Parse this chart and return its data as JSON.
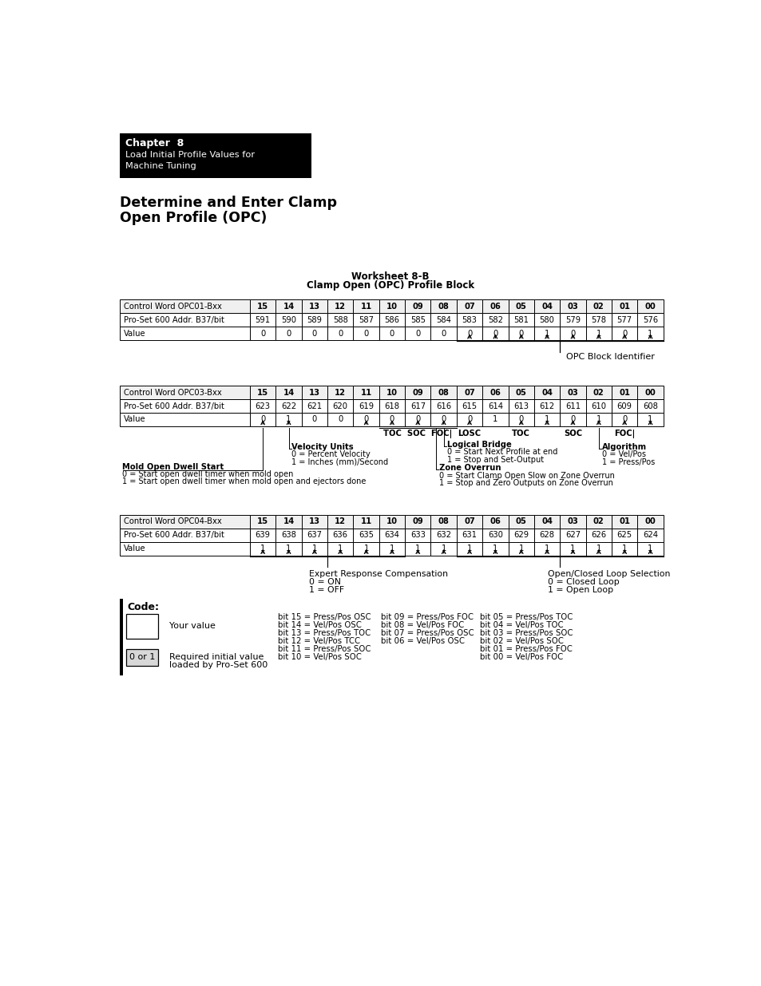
{
  "chapter_box": {
    "text_line1": "Chapter  8",
    "text_line2": "Load Initial Profile Values for",
    "text_line3": "Machine Tuning"
  },
  "title_line1": "Determine and Enter Clamp",
  "title_line2": "Open Profile (OPC)",
  "worksheet_title": "Worksheet 8-B",
  "worksheet_subtitle": "Clamp Open (OPC) Profile Block",
  "table1": {
    "label": "Control Word OPC01-Bxx",
    "bits": [
      "15",
      "14",
      "13",
      "12",
      "11",
      "10",
      "09",
      "08",
      "07",
      "06",
      "05",
      "04",
      "03",
      "02",
      "01",
      "00"
    ],
    "addr_label": "Pro-Set 600 Addr. B37/bit",
    "addrs": [
      "591",
      "590",
      "589",
      "588",
      "587",
      "586",
      "585",
      "584",
      "583",
      "582",
      "581",
      "580",
      "579",
      "578",
      "577",
      "576"
    ],
    "value_label": "Value",
    "values": [
      "0",
      "0",
      "0",
      "0",
      "0",
      "0",
      "0",
      "0",
      "0",
      "0",
      "0",
      "1",
      "0",
      "1",
      "0",
      "1"
    ]
  },
  "opc_block_identifier": "OPC Block Identifier",
  "table2": {
    "label": "Control Word OPC03-Bxx",
    "bits": [
      "15",
      "14",
      "13",
      "12",
      "11",
      "10",
      "09",
      "08",
      "07",
      "06",
      "05",
      "04",
      "03",
      "02",
      "01",
      "00"
    ],
    "addr_label": "Pro-Set 600 Addr. B37/bit",
    "addrs": [
      "623",
      "622",
      "621",
      "620",
      "619",
      "618",
      "617",
      "616",
      "615",
      "614",
      "613",
      "612",
      "611",
      "610",
      "609",
      "608"
    ],
    "value_label": "Value",
    "values": [
      "0",
      "1",
      "0",
      "0",
      "0",
      "0",
      "0",
      "0",
      "0",
      "1",
      "0",
      "1",
      "0",
      "1",
      "0",
      "1"
    ]
  },
  "table3": {
    "label": "Control Word OPC04-Bxx",
    "bits": [
      "15",
      "14",
      "13",
      "12",
      "11",
      "10",
      "09",
      "08",
      "07",
      "06",
      "05",
      "04",
      "03",
      "02",
      "01",
      "00"
    ],
    "addr_label": "Pro-Set 600 Addr. B37/bit",
    "addrs": [
      "639",
      "638",
      "637",
      "636",
      "635",
      "634",
      "633",
      "632",
      "631",
      "630",
      "629",
      "628",
      "627",
      "626",
      "625",
      "624"
    ],
    "value_label": "Value",
    "values": [
      "1",
      "1",
      "1",
      "1",
      "1",
      "1",
      "1",
      "1",
      "1",
      "1",
      "1",
      "1",
      "1",
      "1",
      "1",
      "1"
    ]
  },
  "bit_descriptions_col1": [
    "bit 15 = Press/Pos OSC",
    "bit 14 = Vel/Pos OSC",
    "bit 13 = Press/Pos TOC",
    "bit 12 = Vel/Pos TCC",
    "bit 11 = Press/Pos SOC",
    "bit 10 = Vel/Pos SOC"
  ],
  "bit_descriptions_col2": [
    "bit 09 = Press/Pos FOC",
    "bit 08 = Vel/Pos FOC",
    "bit 07 = Press/Pos OSC",
    "bit 06 = Vel/Pos OSC"
  ],
  "bit_descriptions_col3": [
    "bit 05 = Press/Pos TOC",
    "bit 04 = Vel/Pos TOC",
    "bit 03 = Press/Pos SOC",
    "bit 02 = Vel/Pos SOC",
    "bit 01 = Press/Pos FOC",
    "bit 00 = Vel/Pos FOC"
  ]
}
